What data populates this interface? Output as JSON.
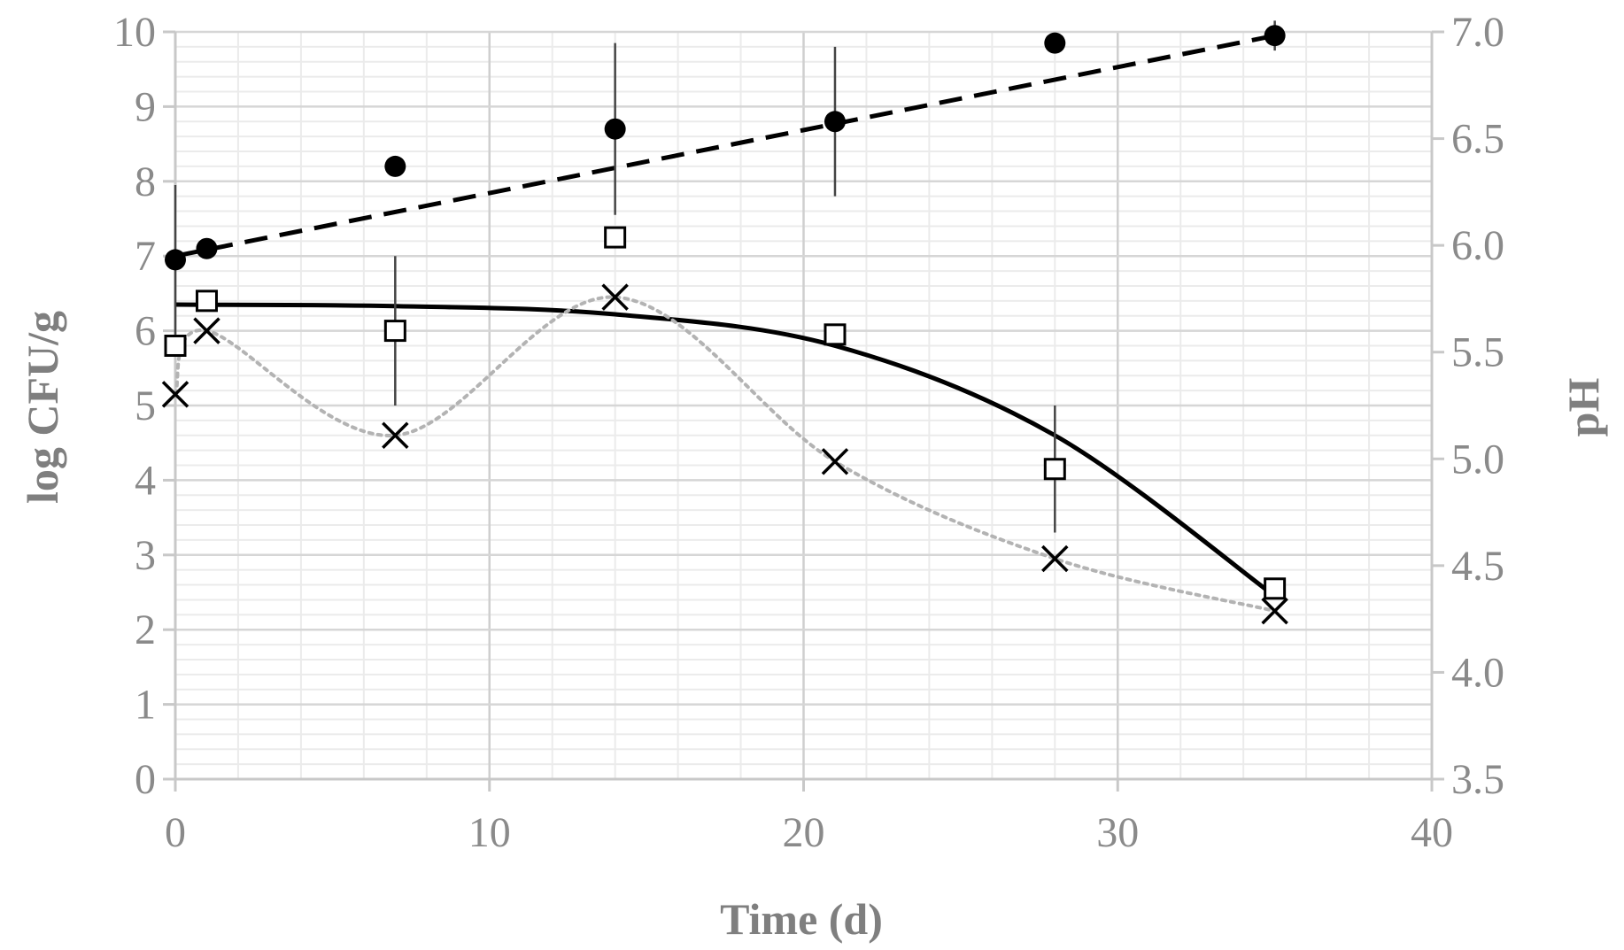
{
  "chart_data": {
    "type": "scatter",
    "title": "",
    "xlabel": "Time (d)",
    "ylabel": "log CFU/g",
    "y2label": "pH",
    "xlim": [
      0,
      40
    ],
    "ylim": [
      0,
      10
    ],
    "y2lim": [
      3.5,
      7.0
    ],
    "x_ticks": [
      0,
      10,
      20,
      30,
      40
    ],
    "y_ticks": [
      0,
      1,
      2,
      3,
      4,
      5,
      6,
      7,
      8,
      9,
      10
    ],
    "y2_ticks": [
      "3.5",
      "4.0",
      "4.5",
      "5.0",
      "5.5",
      "6.0",
      "6.5",
      "7.0"
    ],
    "grid": true,
    "legend": "none",
    "series": [
      {
        "name": "filled-circle",
        "marker": "circle-filled",
        "axis": "left",
        "x": [
          0,
          1,
          7,
          14,
          21,
          28,
          35
        ],
        "y": [
          6.95,
          7.1,
          8.2,
          8.7,
          8.8,
          9.85,
          9.95
        ],
        "error": [
          1.0,
          0.0,
          0.0,
          1.15,
          1.0,
          0.0,
          0.2
        ],
        "trend": {
          "style": "dashed",
          "color": "#000000",
          "x": [
            0,
            35
          ],
          "y": [
            7.0,
            9.95
          ]
        }
      },
      {
        "name": "open-square",
        "marker": "square-open",
        "axis": "left",
        "x": [
          0,
          1,
          7,
          14,
          21,
          28,
          35
        ],
        "y": [
          5.8,
          6.4,
          6.0,
          7.25,
          5.95,
          4.15,
          2.55
        ],
        "error": [
          0.0,
          0.0,
          1.0,
          0.0,
          0.0,
          0.85,
          0.0
        ],
        "trend": {
          "style": "solid",
          "color": "#000000",
          "x": [
            0,
            7,
            14,
            21,
            28,
            35
          ],
          "y": [
            6.35,
            6.33,
            6.22,
            5.8,
            4.6,
            2.45
          ]
        }
      },
      {
        "name": "cross",
        "marker": "x",
        "axis": "left",
        "x": [
          0,
          1,
          7,
          14,
          21,
          28,
          35
        ],
        "y": [
          5.15,
          6.0,
          4.6,
          6.45,
          4.25,
          2.95,
          2.25
        ],
        "error": [
          0,
          0,
          0,
          0,
          0,
          0,
          0
        ],
        "trend": {
          "style": "dotted",
          "color": "#b3b3b3",
          "smooth": true,
          "x": [
            0,
            1,
            7,
            14,
            21,
            28,
            35
          ],
          "y": [
            5.15,
            6.0,
            4.6,
            6.45,
            4.25,
            2.95,
            2.25
          ]
        }
      }
    ]
  }
}
